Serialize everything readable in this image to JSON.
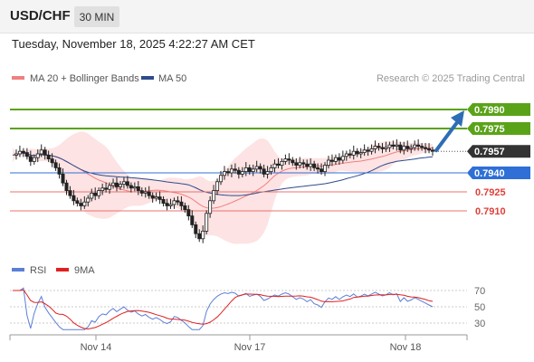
{
  "header": {
    "symbol": "USD/CHF",
    "timeframe": "30 MIN"
  },
  "datetime": "Tuesday, November 18, 2025 4:22:27 AM CET",
  "legend": {
    "ma20": "MA 20 + Bollinger Bands",
    "ma50": "MA 50"
  },
  "credit": "Research © 2025 Trading Central",
  "colors": {
    "resistance": "#5aa319",
    "target_arrow": "#2e6db5",
    "pivot": "#2f6fd6",
    "support": "#e8736f",
    "current": "#333333",
    "ma20": "#f08080",
    "bollinger_fill": "#fde3e3",
    "ma50": "#2e4b8c",
    "rsi": "#5b7fd6",
    "rsi_ma": "#e02020"
  },
  "chart_data": [
    {
      "type": "candlestick",
      "x_ticks": [
        "Nov 14",
        "Nov 17",
        "Nov 18"
      ],
      "y_range": [
        0.788,
        0.8005
      ],
      "current_price": "0.7957",
      "levels": [
        {
          "label": "0.7990",
          "value": 0.799,
          "kind": "resistance"
        },
        {
          "label": "0.7975",
          "value": 0.7975,
          "kind": "resistance"
        },
        {
          "label": "0.7940",
          "value": 0.794,
          "kind": "pivot"
        },
        {
          "label": "0.7925",
          "value": 0.7925,
          "kind": "support"
        },
        {
          "label": "0.7910",
          "value": 0.791,
          "kind": "support"
        }
      ],
      "target_arrow": {
        "from": 0.7957,
        "to": 0.799,
        "direction": "up"
      },
      "close": [
        0.7954,
        0.7955,
        0.7957,
        0.7956,
        0.7953,
        0.7949,
        0.7952,
        0.7955,
        0.7958,
        0.7954,
        0.7951,
        0.7948,
        0.7944,
        0.7939,
        0.7932,
        0.7926,
        0.7922,
        0.7918,
        0.7916,
        0.7914,
        0.7917,
        0.792,
        0.7924,
        0.7922,
        0.7926,
        0.7928,
        0.7927,
        0.793,
        0.7932,
        0.7929,
        0.7931,
        0.7933,
        0.793,
        0.7928,
        0.7929,
        0.7926,
        0.7924,
        0.7925,
        0.7922,
        0.792,
        0.7921,
        0.7919,
        0.7916,
        0.7914,
        0.7915,
        0.7918,
        0.7917,
        0.7914,
        0.7911,
        0.7906,
        0.7899,
        0.7892,
        0.7888,
        0.7894,
        0.7908,
        0.7918,
        0.7926,
        0.7933,
        0.7938,
        0.7941,
        0.794,
        0.7943,
        0.7942,
        0.7939,
        0.7941,
        0.7944,
        0.7941,
        0.7943,
        0.7945,
        0.7943,
        0.7939,
        0.7941,
        0.7944,
        0.7947,
        0.7946,
        0.7949,
        0.7951,
        0.795,
        0.7948,
        0.7946,
        0.7948,
        0.7947,
        0.7945,
        0.7947,
        0.7944,
        0.7943,
        0.7941,
        0.7946,
        0.795,
        0.7949,
        0.7952,
        0.795,
        0.7953,
        0.7955,
        0.7954,
        0.7957,
        0.7955,
        0.7956,
        0.7958,
        0.7957,
        0.7959,
        0.7961,
        0.796,
        0.7959,
        0.796,
        0.7962,
        0.7961,
        0.7962,
        0.7958,
        0.7961,
        0.7959,
        0.796,
        0.7962,
        0.7961,
        0.796,
        0.7959,
        0.7958,
        0.7957
      ],
      "rsi": {
        "ticks": [
          70,
          50,
          30
        ],
        "legend": [
          "RSI",
          "9MA"
        ]
      }
    }
  ]
}
